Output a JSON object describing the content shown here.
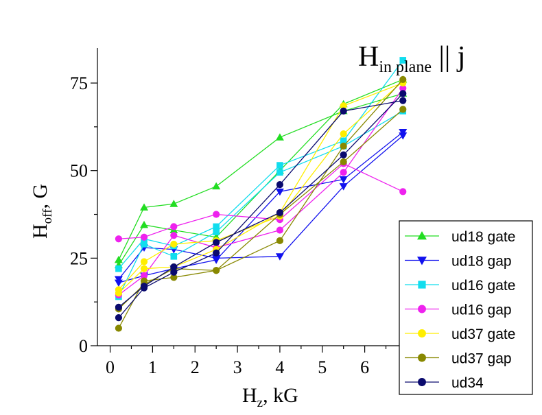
{
  "chart_data": {
    "type": "line",
    "annotation": {
      "main": "H",
      "sub": "in plane",
      "rest": " || j"
    },
    "xlabel": {
      "main": "H",
      "sub": "z",
      "rest": ", kG"
    },
    "ylabel": {
      "main": "H",
      "sub": "off",
      "rest": ", G"
    },
    "xlim": [
      -0.3,
      7.3
    ],
    "ylim": [
      0,
      85
    ],
    "x_ticks": [
      0,
      1,
      2,
      3,
      4,
      5,
      6
    ],
    "y_ticks": [
      0,
      25,
      50,
      75
    ],
    "legend_position": "bottom-right",
    "grid": false,
    "series": [
      {
        "name": "ud18 gate",
        "color": "#22dd22",
        "marker": "triangle-up",
        "points": [
          [
            0.2,
            24.5
          ],
          [
            0.8,
            39.5
          ],
          [
            1.5,
            40.5
          ],
          [
            2.5,
            45.5
          ],
          [
            4,
            59.5
          ],
          [
            5.5,
            67
          ],
          [
            6.9,
            72
          ]
        ]
      },
      {
        "name": "ud18 gate",
        "color": "#22dd22",
        "marker": "triangle-up",
        "points": [
          [
            0.2,
            23
          ],
          [
            0.8,
            34.5
          ],
          [
            1.5,
            33
          ],
          [
            2.5,
            31
          ],
          [
            4,
            50
          ],
          [
            5.5,
            69
          ],
          [
            6.9,
            76
          ]
        ]
      },
      {
        "name": "ud18 gap",
        "color": "#1111ee",
        "marker": "triangle-down",
        "points": [
          [
            0.2,
            19
          ],
          [
            0.8,
            28
          ],
          [
            1.5,
            27.5
          ],
          [
            2.5,
            25
          ],
          [
            4,
            25.5
          ],
          [
            5.5,
            45.5
          ],
          [
            6.9,
            60
          ]
        ]
      },
      {
        "name": "ud18 gap",
        "color": "#1111ee",
        "marker": "triangle-down",
        "points": [
          [
            0.2,
            18
          ],
          [
            0.8,
            20
          ],
          [
            1.5,
            22
          ],
          [
            2.5,
            24.5
          ],
          [
            4,
            44
          ],
          [
            5.5,
            47.5
          ],
          [
            6.9,
            61
          ]
        ]
      },
      {
        "name": "ud16 gate",
        "color": "#11ddee",
        "marker": "square",
        "points": [
          [
            0.2,
            22
          ],
          [
            0.8,
            30.5
          ],
          [
            1.5,
            28.5
          ],
          [
            2.5,
            34
          ],
          [
            4,
            51.5
          ],
          [
            5.5,
            58.5
          ],
          [
            6.9,
            81.5
          ]
        ]
      },
      {
        "name": "ud16 gate",
        "color": "#11ddee",
        "marker": "square",
        "points": [
          [
            0.2,
            14
          ],
          [
            0.8,
            29
          ],
          [
            1.5,
            25.5
          ],
          [
            2.5,
            32.5
          ],
          [
            4,
            49.5
          ],
          [
            5.5,
            57
          ],
          [
            6.9,
            67
          ]
        ]
      },
      {
        "name": "ud16 gap",
        "color": "#ee22ee",
        "marker": "circle",
        "points": [
          [
            0.2,
            30.5
          ],
          [
            0.8,
            31
          ],
          [
            1.5,
            34
          ],
          [
            2.5,
            37.5
          ],
          [
            4,
            36
          ],
          [
            5.5,
            52
          ],
          [
            6.9,
            44
          ]
        ]
      },
      {
        "name": "ud16 gap",
        "color": "#ee22ee",
        "marker": "circle",
        "points": [
          [
            0.2,
            14.5
          ],
          [
            0.8,
            20
          ],
          [
            1.5,
            31.5
          ],
          [
            2.5,
            28
          ],
          [
            4,
            33
          ],
          [
            5.5,
            49.5
          ],
          [
            6.9,
            73.5
          ]
        ]
      },
      {
        "name": "ud37 gate",
        "color": "#ffee00",
        "marker": "circle",
        "points": [
          [
            0.2,
            16
          ],
          [
            0.8,
            24
          ],
          [
            1.5,
            29
          ],
          [
            2.5,
            30
          ],
          [
            4,
            37
          ],
          [
            5.5,
            60.5
          ],
          [
            6.9,
            75.5
          ]
        ]
      },
      {
        "name": "ud37 gate",
        "color": "#ffee00",
        "marker": "circle",
        "points": [
          [
            0.2,
            15
          ],
          [
            0.8,
            22
          ],
          [
            1.5,
            22.5
          ],
          [
            2.5,
            27.5
          ],
          [
            4,
            38
          ],
          [
            5.5,
            68.5
          ],
          [
            6.9,
            75
          ]
        ]
      },
      {
        "name": "ud37 gap",
        "color": "#888800",
        "marker": "circle",
        "points": [
          [
            0.2,
            5
          ],
          [
            0.8,
            18.5
          ],
          [
            1.5,
            19.5
          ],
          [
            2.5,
            21.5
          ],
          [
            4,
            30
          ],
          [
            5.5,
            57
          ],
          [
            6.9,
            76
          ]
        ]
      },
      {
        "name": "ud37 gap",
        "color": "#888800",
        "marker": "circle",
        "points": [
          [
            0.2,
            10.5
          ],
          [
            0.8,
            17.5
          ],
          [
            1.5,
            22
          ],
          [
            2.5,
            21.5
          ],
          [
            4,
            37.5
          ],
          [
            5.5,
            52.5
          ],
          [
            6.9,
            67.5
          ]
        ]
      },
      {
        "name": "ud34",
        "color": "#0a0a6e",
        "marker": "circle",
        "points": [
          [
            0.2,
            8
          ],
          [
            0.8,
            16.5
          ],
          [
            1.5,
            21
          ],
          [
            2.5,
            26.5
          ],
          [
            4,
            46
          ],
          [
            5.5,
            67
          ],
          [
            6.9,
            70
          ]
        ]
      },
      {
        "name": "ud34",
        "color": "#0a0a6e",
        "marker": "circle",
        "points": [
          [
            0.2,
            11
          ],
          [
            0.8,
            17
          ],
          [
            1.5,
            22.5
          ],
          [
            2.5,
            29.5
          ],
          [
            4,
            38
          ],
          [
            5.5,
            54.5
          ],
          [
            6.9,
            72
          ]
        ]
      }
    ],
    "legend": [
      {
        "label": "ud18 gate",
        "color": "#22dd22",
        "marker": "triangle-up"
      },
      {
        "label": "ud18 gap",
        "color": "#1111ee",
        "marker": "triangle-down"
      },
      {
        "label": "ud16 gate",
        "color": "#11ddee",
        "marker": "square"
      },
      {
        "label": "ud16 gap",
        "color": "#ee22ee",
        "marker": "circle"
      },
      {
        "label": "ud37 gate",
        "color": "#ffee00",
        "marker": "circle"
      },
      {
        "label": "ud37 gap",
        "color": "#888800",
        "marker": "circle"
      },
      {
        "label": "ud34",
        "color": "#0a0a6e",
        "marker": "circle"
      }
    ]
  }
}
